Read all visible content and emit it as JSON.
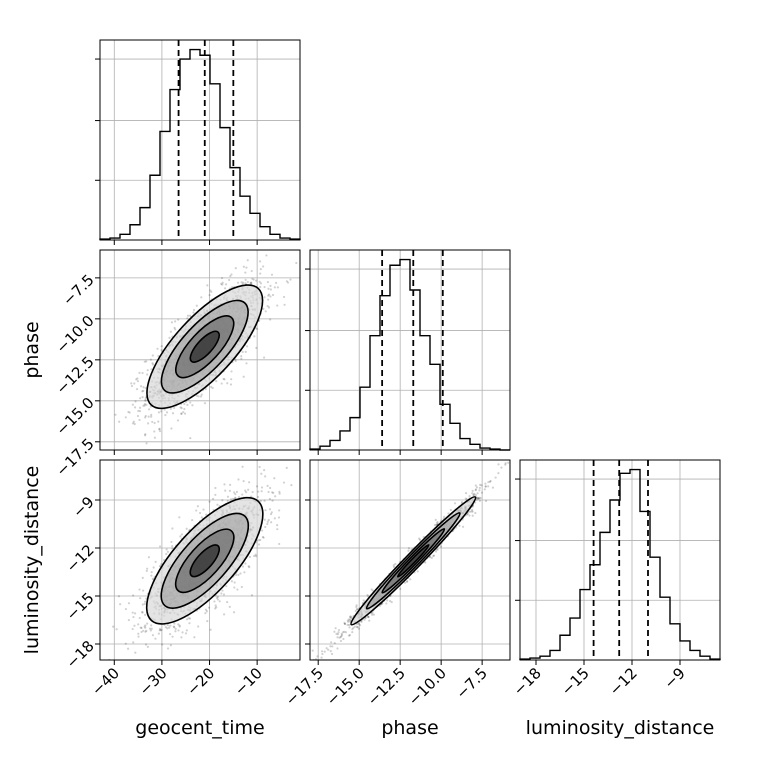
{
  "chart_data": {
    "type": "corner",
    "parameters": [
      "geocent_time",
      "phase",
      "luminosity_distance"
    ],
    "axis_labels": {
      "geocent_time": "geocent_time",
      "phase": "phase",
      "luminosity_distance": "luminosity_distance"
    },
    "ranges": {
      "geocent_time": [
        -43,
        -1
      ],
      "phase": [
        -18.0,
        -5.8
      ],
      "luminosity_distance": [
        -19.0,
        -6.5
      ]
    },
    "ticks": {
      "geocent_time": [
        -40,
        -30,
        -20,
        -10
      ],
      "phase": [
        -17.5,
        -15.0,
        -12.5,
        -10.0,
        -7.5
      ],
      "luminosity_distance": [
        -18,
        -15,
        -12,
        -9
      ]
    },
    "tick_labels": {
      "geocent_time": [
        "−40",
        "−30",
        "−20",
        "−10"
      ],
      "phase": [
        "−17.5",
        "−15.0",
        "−12.5",
        "−10.0",
        "−7.5"
      ],
      "luminosity_distance": [
        "−18",
        "−15",
        "−12",
        "−9"
      ]
    },
    "quantiles": {
      "geocent_time": [
        -26.5,
        -21.0,
        -15.0
      ],
      "phase": [
        -13.6,
        -11.7,
        -9.9
      ],
      "luminosity_distance": [
        -14.4,
        -12.8,
        -11.0
      ]
    },
    "histograms": {
      "geocent_time": {
        "edges": [
          -43.0,
          -40.9,
          -38.8,
          -36.7,
          -34.6,
          -32.5,
          -30.4,
          -28.3,
          -26.2,
          -24.1,
          -22.0,
          -19.9,
          -17.8,
          -15.7,
          -13.6,
          -11.5,
          -9.4,
          -7.3,
          -5.2,
          -3.1,
          -1.0
        ],
        "counts": [
          0.005,
          0.01,
          0.03,
          0.08,
          0.17,
          0.34,
          0.57,
          0.79,
          0.95,
          1.0,
          0.97,
          0.82,
          0.59,
          0.38,
          0.23,
          0.14,
          0.07,
          0.03,
          0.01,
          0.005
        ]
      },
      "phase": {
        "edges": [
          -18.0,
          -17.39,
          -16.78,
          -16.17,
          -15.56,
          -14.95,
          -14.34,
          -13.73,
          -13.12,
          -12.51,
          -11.9,
          -11.29,
          -10.68,
          -10.07,
          -9.46,
          -8.85,
          -8.24,
          -7.63,
          -7.02,
          -6.41,
          -5.8
        ],
        "counts": [
          0.005,
          0.02,
          0.05,
          0.1,
          0.17,
          0.33,
          0.6,
          0.81,
          0.97,
          1.0,
          0.84,
          0.6,
          0.45,
          0.24,
          0.14,
          0.06,
          0.03,
          0.01,
          0.005,
          0.0
        ]
      },
      "luminosity_distance": {
        "edges": [
          -19.0,
          -18.375,
          -17.75,
          -17.125,
          -16.5,
          -15.875,
          -15.25,
          -14.625,
          -14.0,
          -13.375,
          -12.75,
          -12.125,
          -11.5,
          -10.875,
          -10.25,
          -9.625,
          -9.0,
          -8.375,
          -7.75,
          -7.125,
          -6.5
        ],
        "counts": [
          0.005,
          0.01,
          0.02,
          0.05,
          0.13,
          0.22,
          0.37,
          0.5,
          0.67,
          0.84,
          0.98,
          1.0,
          0.78,
          0.54,
          0.33,
          0.19,
          0.1,
          0.05,
          0.02,
          0.005
        ]
      }
    },
    "pairs": [
      {
        "x": "geocent_time",
        "y": "phase",
        "mean": [
          -21,
          -11.7
        ],
        "sd": [
          6.0,
          1.9
        ],
        "corr": 0.75
      },
      {
        "x": "geocent_time",
        "y": "luminosity_distance",
        "mean": [
          -21,
          -12.8
        ],
        "sd": [
          6.0,
          2.0
        ],
        "corr": 0.74
      },
      {
        "x": "phase",
        "y": "luminosity_distance",
        "mean": [
          -11.7,
          -12.8
        ],
        "sd": [
          1.9,
          2.0
        ],
        "corr": 0.985
      }
    ],
    "contour_levels_sigma": [
      0.5,
      1.0,
      1.5,
      2.0
    ],
    "grid": true,
    "colors": {
      "line": "#000000",
      "grid": "#b0b0b0",
      "points": "#000000"
    }
  }
}
